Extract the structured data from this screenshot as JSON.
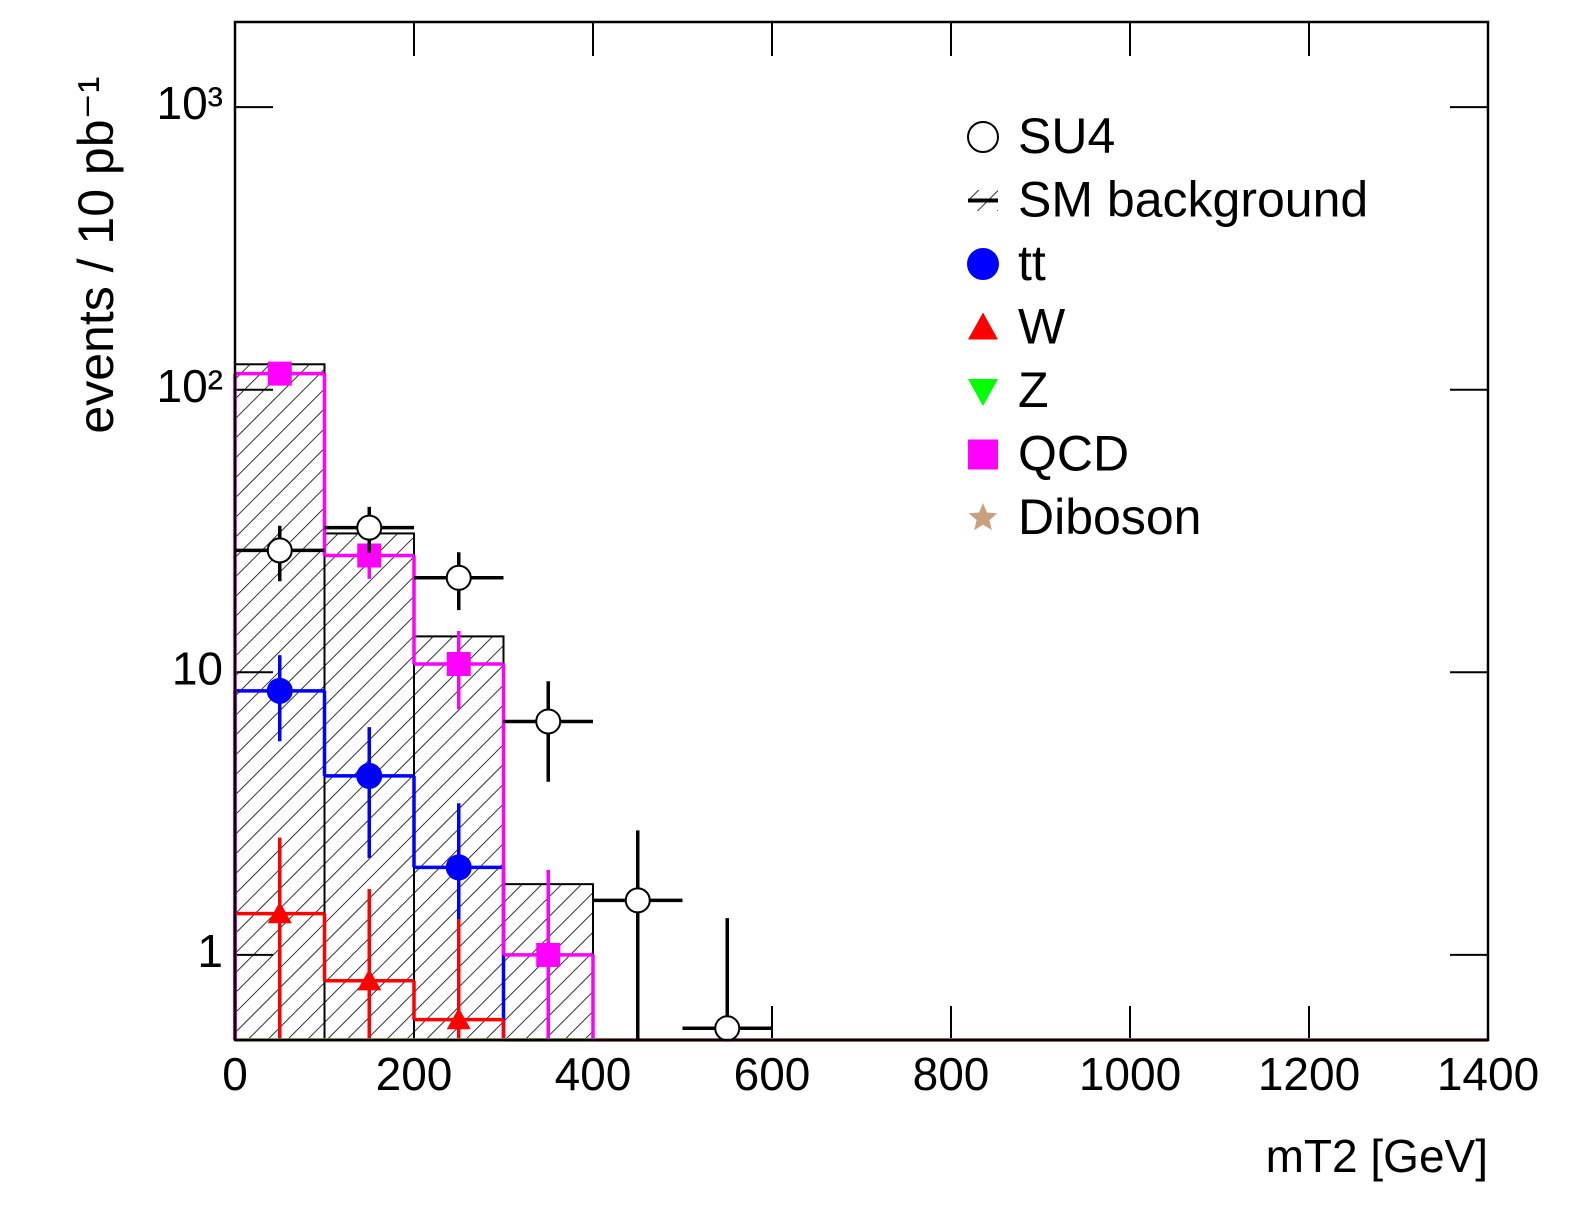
{
  "chart_data": {
    "type": "histogram",
    "x_label": "mT2 [GeV]",
    "y_label": "events / 10 pb⁻¹",
    "log_y": true,
    "bins": [
      0,
      100,
      200,
      300,
      400,
      500,
      600,
      700,
      800,
      900,
      1000,
      1100,
      1200,
      1300,
      1400
    ],
    "xlim": [
      0,
      1400
    ],
    "xticks": [
      0,
      200,
      400,
      600,
      800,
      1000,
      1200,
      1400
    ],
    "ylim": [
      0.5,
      2000
    ],
    "yticks": [
      {
        "value": 1,
        "label": "1"
      },
      {
        "value": 10,
        "label": "10"
      },
      {
        "value": 100,
        "label": "10²"
      },
      {
        "value": 1000,
        "label": "10³"
      }
    ],
    "legend": "upper right",
    "series": [
      {
        "name": "SU4",
        "color": "#000000",
        "style": "points",
        "marker": "circle-open",
        "values": [
          27,
          32.5,
          21.6,
          6.7,
          1.56,
          0.55,
          0,
          0,
          0,
          0,
          0,
          0,
          0,
          0
        ],
        "errors": [
          6,
          6,
          5,
          2.6,
          1.2,
          0.8,
          0,
          0,
          0,
          0,
          0,
          0,
          0,
          0
        ]
      },
      {
        "name": "SM background",
        "color": "#000000",
        "style": "hatched",
        "marker": "hatch",
        "values": [
          123,
          31,
          13.4,
          1.78,
          0,
          0,
          0,
          0,
          0,
          0,
          0,
          0,
          0,
          0
        ]
      },
      {
        "name": "tt",
        "color": "#0000ff",
        "style": "step",
        "marker": "circle",
        "values": [
          8.6,
          4.3,
          2.04,
          0,
          0,
          0,
          0,
          0,
          0,
          0,
          0,
          0,
          0,
          0
        ],
        "errors": [
          2.9,
          2.1,
          1.4,
          0,
          0,
          0,
          0,
          0,
          0,
          0,
          0,
          0,
          0,
          0
        ]
      },
      {
        "name": "W",
        "color": "#ff0000",
        "style": "step",
        "marker": "triangle-up",
        "values": [
          1.4,
          0.81,
          0.59,
          0,
          0,
          0,
          0,
          0,
          0,
          0,
          0,
          0,
          0,
          0
        ],
        "errors": [
          1.2,
          0.9,
          0.75,
          0,
          0,
          0,
          0,
          0,
          0,
          0,
          0,
          0,
          0,
          0
        ]
      },
      {
        "name": "Z",
        "color": "#00ff00",
        "style": "step",
        "marker": "triangle-down",
        "values": [
          0,
          0,
          0,
          0,
          0,
          0,
          0,
          0,
          0,
          0,
          0,
          0,
          0,
          0
        ]
      },
      {
        "name": "QCD",
        "color": "#ff00ff",
        "style": "step",
        "marker": "square",
        "values": [
          114,
          25.9,
          10.7,
          1.0,
          0,
          0,
          0,
          0,
          0,
          0,
          0,
          0,
          0,
          0
        ],
        "errors": [
          10,
          4.5,
          3.3,
          1.0,
          0,
          0,
          0,
          0,
          0,
          0,
          0,
          0,
          0,
          0
        ]
      },
      {
        "name": "Diboson",
        "color": "#c8a080",
        "style": "step",
        "marker": "star",
        "values": [
          0,
          0,
          0,
          0,
          0,
          0,
          0,
          0,
          0,
          0,
          0,
          0,
          0,
          0
        ]
      }
    ]
  }
}
